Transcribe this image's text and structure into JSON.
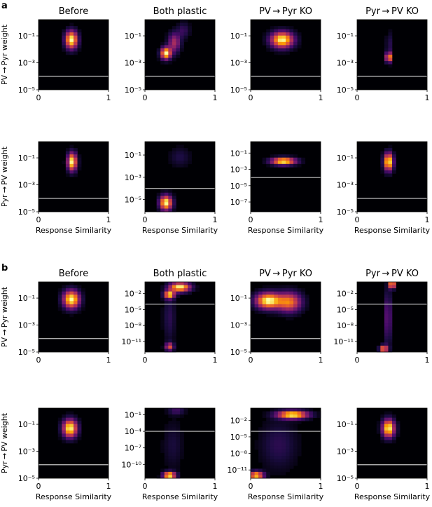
{
  "figure": {
    "panel_labels": [
      "a",
      "b"
    ],
    "column_titles": [
      "Before",
      "Both plastic",
      "PV → Pyr KO",
      "Pyr → PV KO"
    ],
    "row_ylabels": [
      "PV → Pyr weight",
      "Pyr → PV weight"
    ],
    "xlabel": "Response Similarity",
    "xtick_labels": [
      "0",
      "1"
    ]
  },
  "chart_data": [
    {
      "type": "heatmap",
      "panel": "a",
      "row": 1,
      "col": 1,
      "title": "Before",
      "ylabel": "PV → Pyr weight",
      "xlim": [
        0,
        1
      ],
      "ylim_log10": [
        -5,
        0.2
      ],
      "yticks": [
        {
          "v": -1,
          "label": "10⁻¹"
        },
        {
          "v": -3,
          "label": "10⁻³"
        },
        {
          "v": -5,
          "label": "10⁻⁵"
        }
      ],
      "hline_log10": -4,
      "blobs": [
        {
          "x": 0.47,
          "y": -1.3,
          "sx": 0.06,
          "sy": 0.45,
          "a": 1.0
        }
      ]
    },
    {
      "type": "heatmap",
      "panel": "a",
      "row": 1,
      "col": 2,
      "title": "Both plastic",
      "xlim": [
        0,
        1
      ],
      "ylim_log10": [
        -5,
        0.2
      ],
      "yticks": [
        {
          "v": -1,
          "label": "10⁻¹"
        },
        {
          "v": -3,
          "label": "10⁻³"
        },
        {
          "v": -5,
          "label": "10⁻⁵"
        }
      ],
      "hline_log10": -4,
      "blobs": [
        {
          "x": 0.3,
          "y": -2.3,
          "sx": 0.05,
          "sy": 0.3,
          "a": 1.0
        },
        {
          "x": 0.42,
          "y": -1.5,
          "sx": 0.06,
          "sy": 0.5,
          "a": 0.45
        },
        {
          "x": 0.55,
          "y": -0.6,
          "sx": 0.06,
          "sy": 0.4,
          "a": 0.18
        }
      ]
    },
    {
      "type": "heatmap",
      "panel": "a",
      "row": 1,
      "col": 3,
      "title": "PV → Pyr KO",
      "xlim": [
        0,
        1
      ],
      "ylim_log10": [
        -5,
        0.2
      ],
      "yticks": [
        {
          "v": -1,
          "label": "10⁻¹"
        },
        {
          "v": -3,
          "label": "10⁻³"
        },
        {
          "v": -5,
          "label": "10⁻⁵"
        }
      ],
      "hline_log10": -4,
      "blobs": [
        {
          "x": 0.45,
          "y": -1.3,
          "sx": 0.11,
          "sy": 0.4,
          "a": 1.0
        }
      ]
    },
    {
      "type": "heatmap",
      "panel": "a",
      "row": 1,
      "col": 4,
      "title": "Pyr → PV KO",
      "xlim": [
        0,
        1
      ],
      "ylim_log10": [
        -5,
        0.2
      ],
      "yticks": [
        {
          "v": -1,
          "label": "10⁻¹"
        },
        {
          "v": -3,
          "label": "10⁻³"
        },
        {
          "v": -5,
          "label": "10⁻⁵"
        }
      ],
      "hline_log10": -4,
      "blobs": [
        {
          "x": 0.45,
          "y": -2.6,
          "sx": 0.025,
          "sy": 0.25,
          "a": 1.0
        },
        {
          "x": 0.45,
          "y": -1.6,
          "sx": 0.02,
          "sy": 0.6,
          "a": 0.25
        }
      ]
    },
    {
      "type": "heatmap",
      "panel": "a",
      "row": 2,
      "col": 1,
      "title": "",
      "ylabel": "Pyr → PV weight",
      "xlim": [
        0,
        1
      ],
      "ylim_log10": [
        -5,
        0.2
      ],
      "yticks": [
        {
          "v": -1,
          "label": "10⁻¹"
        },
        {
          "v": -3,
          "label": "10⁻³"
        },
        {
          "v": -5,
          "label": "10⁻⁵"
        }
      ],
      "hline_log10": -4,
      "blobs": [
        {
          "x": 0.48,
          "y": -1.3,
          "sx": 0.045,
          "sy": 0.45,
          "a": 1.0
        }
      ]
    },
    {
      "type": "heatmap",
      "panel": "a",
      "row": 2,
      "col": 2,
      "title": "",
      "xlim": [
        0,
        1
      ],
      "ylim_log10": [
        -6.1,
        0.2
      ],
      "yticks": [
        {
          "v": -1,
          "label": "10⁻¹"
        },
        {
          "v": -3,
          "label": "10⁻³"
        },
        {
          "v": -5,
          "label": "10⁻⁵"
        }
      ],
      "hline_log10": -4,
      "blobs": [
        {
          "x": 0.3,
          "y": -5.3,
          "sx": 0.06,
          "sy": 0.45,
          "a": 1.0
        },
        {
          "x": 0.5,
          "y": -1.2,
          "sx": 0.1,
          "sy": 0.6,
          "a": 0.12
        }
      ]
    },
    {
      "type": "heatmap",
      "panel": "a",
      "row": 2,
      "col": 3,
      "title": "",
      "xlim": [
        0,
        1
      ],
      "ylim_log10": [
        -8.2,
        0.4
      ],
      "yticks": [
        {
          "v": -1,
          "label": "10⁻¹"
        },
        {
          "v": -3,
          "label": "10⁻³"
        },
        {
          "v": -5,
          "label": "10⁻⁵"
        },
        {
          "v": -7,
          "label": "10⁻⁷"
        }
      ],
      "hline_log10": -4,
      "blobs": [
        {
          "x": 0.47,
          "y": -2.0,
          "sx": 0.12,
          "sy": 0.3,
          "a": 1.0
        }
      ]
    },
    {
      "type": "heatmap",
      "panel": "a",
      "row": 2,
      "col": 4,
      "title": "",
      "xlim": [
        0,
        1
      ],
      "ylim_log10": [
        -5,
        0.2
      ],
      "yticks": [
        {
          "v": -1,
          "label": "10⁻¹"
        },
        {
          "v": -3,
          "label": "10⁻³"
        },
        {
          "v": -5,
          "label": "10⁻⁵"
        }
      ],
      "hline_log10": -4,
      "blobs": [
        {
          "x": 0.45,
          "y": -1.3,
          "sx": 0.045,
          "sy": 0.45,
          "a": 1.0
        }
      ]
    },
    {
      "type": "heatmap",
      "panel": "b",
      "row": 1,
      "col": 1,
      "title": "Before",
      "ylabel": "PV → Pyr weight",
      "xlim": [
        0,
        1
      ],
      "ylim_log10": [
        -5,
        0.2
      ],
      "yticks": [
        {
          "v": -1,
          "label": "10⁻¹"
        },
        {
          "v": -3,
          "label": "10⁻³"
        },
        {
          "v": -5,
          "label": "10⁻⁵"
        }
      ],
      "hline_log10": -4,
      "blobs": [
        {
          "x": 0.47,
          "y": -1.1,
          "sx": 0.08,
          "sy": 0.45,
          "a": 1.0
        }
      ]
    },
    {
      "type": "heatmap",
      "panel": "b",
      "row": 1,
      "col": 2,
      "title": "Both plastic",
      "xlim": [
        0,
        1
      ],
      "ylim_log10": [
        -13,
        0.2
      ],
      "yticks": [
        {
          "v": -2,
          "label": "10⁻²"
        },
        {
          "v": -5,
          "label": "10⁻⁵"
        },
        {
          "v": -8,
          "label": "10⁻⁸"
        },
        {
          "v": -11,
          "label": "10⁻¹¹"
        }
      ],
      "hline_log10": -4,
      "blobs": [
        {
          "x": 0.5,
          "y": -0.8,
          "sx": 0.1,
          "sy": 0.6,
          "a": 1.0
        },
        {
          "x": 0.35,
          "y": -2.2,
          "sx": 0.05,
          "sy": 0.5,
          "a": 0.9
        },
        {
          "x": 0.35,
          "y": -12.0,
          "sx": 0.04,
          "sy": 0.5,
          "a": 0.6
        },
        {
          "x": 0.35,
          "y": -6.5,
          "sx": 0.06,
          "sy": 3.2,
          "a": 0.15
        }
      ]
    },
    {
      "type": "heatmap",
      "panel": "b",
      "row": 1,
      "col": 3,
      "title": "PV → Pyr KO",
      "xlim": [
        0,
        1
      ],
      "ylim_log10": [
        -5,
        0.2
      ],
      "yticks": [
        {
          "v": -1,
          "label": "10⁻¹"
        },
        {
          "v": -3,
          "label": "10⁻³"
        },
        {
          "v": -5,
          "label": "10⁻⁵"
        }
      ],
      "hline_log10": -4,
      "blobs": [
        {
          "x": 0.25,
          "y": -1.2,
          "sx": 0.12,
          "sy": 0.4,
          "a": 1.0
        },
        {
          "x": 0.55,
          "y": -1.3,
          "sx": 0.12,
          "sy": 0.5,
          "a": 0.7
        }
      ]
    },
    {
      "type": "heatmap",
      "panel": "b",
      "row": 1,
      "col": 4,
      "title": "Pyr → PV KO",
      "xlim": [
        0,
        1
      ],
      "ylim_log10": [
        -13,
        0.2
      ],
      "yticks": [
        {
          "v": -2,
          "label": "10⁻²"
        },
        {
          "v": -5,
          "label": "10⁻⁵"
        },
        {
          "v": -8,
          "label": "10⁻⁸"
        },
        {
          "v": -11,
          "label": "10⁻¹¹"
        }
      ],
      "hline_log10": -4,
      "blobs": [
        {
          "x": 0.5,
          "y": -0.3,
          "sx": 0.03,
          "sy": 0.5,
          "a": 1.0
        },
        {
          "x": 0.38,
          "y": -12.4,
          "sx": 0.04,
          "sy": 0.45,
          "a": 0.8
        },
        {
          "x": 0.44,
          "y": -6.5,
          "sx": 0.035,
          "sy": 3.5,
          "a": 0.3
        }
      ]
    },
    {
      "type": "heatmap",
      "panel": "b",
      "row": 2,
      "col": 1,
      "title": "",
      "ylabel": "Pyr → PV weight",
      "xlim": [
        0,
        1
      ],
      "ylim_log10": [
        -5,
        0.2
      ],
      "yticks": [
        {
          "v": -1,
          "label": "10⁻¹"
        },
        {
          "v": -3,
          "label": "10⁻³"
        },
        {
          "v": -5,
          "label": "10⁻⁵"
        }
      ],
      "hline_log10": -4,
      "blobs": [
        {
          "x": 0.45,
          "y": -1.3,
          "sx": 0.07,
          "sy": 0.45,
          "a": 1.0
        }
      ]
    },
    {
      "type": "heatmap",
      "panel": "b",
      "row": 2,
      "col": 2,
      "title": "",
      "xlim": [
        0,
        1
      ],
      "ylim_log10": [
        -12.5,
        0.2
      ],
      "yticks": [
        {
          "v": -1,
          "label": "10⁻¹"
        },
        {
          "v": -4,
          "label": "10⁻⁴"
        },
        {
          "v": -7,
          "label": "10⁻⁷"
        },
        {
          "v": -10,
          "label": "10⁻¹⁰"
        }
      ],
      "hline_log10": -4,
      "blobs": [
        {
          "x": 0.35,
          "y": -12.0,
          "sx": 0.06,
          "sy": 0.45,
          "a": 1.0
        },
        {
          "x": 0.45,
          "y": -0.3,
          "sx": 0.08,
          "sy": 0.5,
          "a": 0.2
        },
        {
          "x": 0.4,
          "y": -6.5,
          "sx": 0.1,
          "sy": 3.0,
          "a": 0.1
        }
      ]
    },
    {
      "type": "heatmap",
      "panel": "b",
      "row": 2,
      "col": 3,
      "title": "",
      "xlim": [
        0,
        1
      ],
      "ylim_log10": [
        -12.5,
        0.2
      ],
      "yticks": [
        {
          "v": -2,
          "label": "10⁻²"
        },
        {
          "v": -5,
          "label": "10⁻⁵"
        },
        {
          "v": -8,
          "label": "10⁻⁸"
        },
        {
          "v": -11,
          "label": "10⁻¹¹"
        }
      ],
      "hline_log10": -4,
      "blobs": [
        {
          "x": 0.6,
          "y": -1.0,
          "sx": 0.15,
          "sy": 0.5,
          "a": 1.0
        },
        {
          "x": 0.08,
          "y": -12.0,
          "sx": 0.07,
          "sy": 0.5,
          "a": 0.9
        },
        {
          "x": 0.4,
          "y": -6.5,
          "sx": 0.18,
          "sy": 3.0,
          "a": 0.15
        }
      ]
    },
    {
      "type": "heatmap",
      "panel": "b",
      "row": 2,
      "col": 4,
      "title": "",
      "xlim": [
        0,
        1
      ],
      "ylim_log10": [
        -5,
        0.2
      ],
      "yticks": [
        {
          "v": -1,
          "label": "10⁻¹"
        },
        {
          "v": -3,
          "label": "10⁻³"
        },
        {
          "v": -5,
          "label": "10⁻⁵"
        }
      ],
      "hline_log10": -4,
      "blobs": [
        {
          "x": 0.45,
          "y": -1.3,
          "sx": 0.06,
          "sy": 0.45,
          "a": 1.0
        }
      ]
    }
  ],
  "colors": {
    "background": "#000004",
    "colormap": [
      "#000004",
      "#1b0c41",
      "#4a0c6b",
      "#781c6d",
      "#a52c60",
      "#cf4446",
      "#ed6925",
      "#fb9b06",
      "#f7d13d",
      "#fcffa4"
    ],
    "hline": "#c8c8c8"
  }
}
